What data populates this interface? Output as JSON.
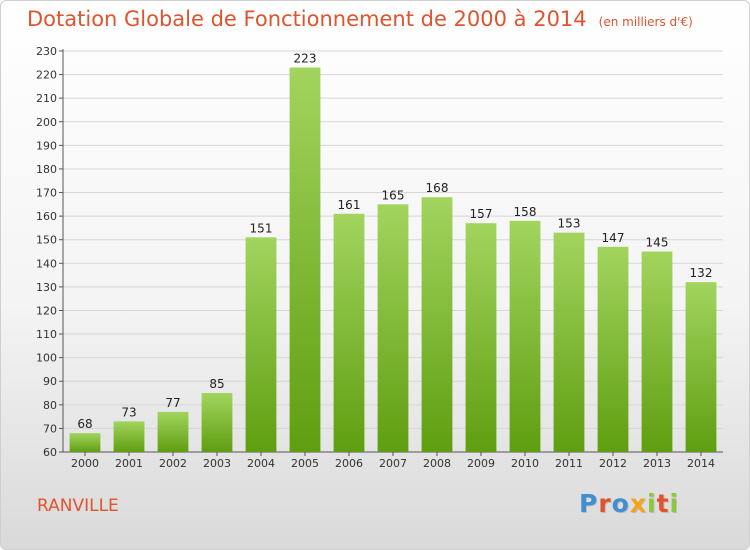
{
  "header": {
    "title": "Dotation Globale de Fonctionnement de 2000 à 2014",
    "subtitle": "(en milliers d'€)"
  },
  "footer": {
    "town": "RANVILLE",
    "brand": "Proxiti",
    "brand_colors": [
      "#3f8fd2",
      "#e0542d",
      "#3f8fd2",
      "#f2a51a",
      "#8dc63f",
      "#e0542d",
      "#8dc63f"
    ]
  },
  "colors": {
    "bar_top": "#a2d45e",
    "bar_bottom": "#5f9e10",
    "accent": "#e0542d"
  },
  "chart_data": {
    "type": "bar",
    "categories": [
      "2000",
      "2001",
      "2002",
      "2003",
      "2004",
      "2005",
      "2006",
      "2007",
      "2008",
      "2009",
      "2010",
      "2011",
      "2012",
      "2013",
      "2014"
    ],
    "values": [
      68,
      73,
      77,
      85,
      151,
      223,
      161,
      165,
      168,
      157,
      158,
      153,
      147,
      145,
      132
    ],
    "title": "Dotation Globale de Fonctionnement de 2000 à 2014",
    "subtitle": "(en milliers d'€)",
    "ylim": [
      60,
      230
    ],
    "yticks": [
      60,
      70,
      80,
      90,
      100,
      110,
      120,
      130,
      140,
      150,
      160,
      170,
      180,
      190,
      200,
      210,
      220,
      230
    ],
    "grid": true,
    "data_labels": true
  }
}
